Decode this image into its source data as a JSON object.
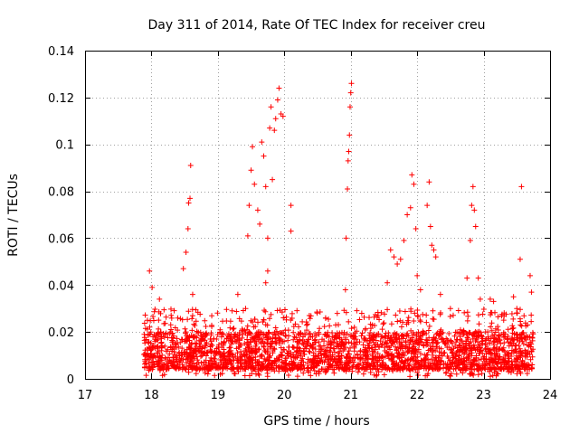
{
  "chart_data": {
    "type": "scatter",
    "title": "Day 311 of 2014, Rate Of TEC Index for receiver creu",
    "xlabel": "GPS time / hours",
    "ylabel": "ROTI / TECUs",
    "xlim": [
      17,
      24
    ],
    "ylim": [
      0,
      0.14
    ],
    "x_ticks": [
      "17",
      "18",
      "19",
      "20",
      "21",
      "22",
      "23",
      "24"
    ],
    "y_ticks": [
      "0",
      "0.02",
      "0.04",
      "0.06",
      "0.08",
      "0.1",
      "0.12",
      "0.14"
    ],
    "grid": true,
    "marker": "plus",
    "series_color": "#ff0000",
    "data_coverage_hours": [
      17.88,
      23.75
    ],
    "background_band": {
      "typical": [
        0.004,
        0.02
      ],
      "occasional_max": 0.03
    },
    "notable_points": [
      {
        "x": 17.97,
        "y": 0.046
      },
      {
        "x": 18.01,
        "y": 0.039
      },
      {
        "x": 18.12,
        "y": 0.034
      },
      {
        "x": 18.48,
        "y": 0.047
      },
      {
        "x": 18.52,
        "y": 0.054
      },
      {
        "x": 18.55,
        "y": 0.064
      },
      {
        "x": 18.56,
        "y": 0.075
      },
      {
        "x": 18.58,
        "y": 0.077
      },
      {
        "x": 18.59,
        "y": 0.091
      },
      {
        "x": 18.62,
        "y": 0.036
      },
      {
        "x": 19.3,
        "y": 0.036
      },
      {
        "x": 19.45,
        "y": 0.061
      },
      {
        "x": 19.47,
        "y": 0.074
      },
      {
        "x": 19.5,
        "y": 0.089
      },
      {
        "x": 19.52,
        "y": 0.099
      },
      {
        "x": 19.55,
        "y": 0.083
      },
      {
        "x": 19.6,
        "y": 0.072
      },
      {
        "x": 19.63,
        "y": 0.066
      },
      {
        "x": 19.66,
        "y": 0.101
      },
      {
        "x": 19.69,
        "y": 0.095
      },
      {
        "x": 19.72,
        "y": 0.082
      },
      {
        "x": 19.75,
        "y": 0.06
      },
      {
        "x": 19.78,
        "y": 0.107
      },
      {
        "x": 19.8,
        "y": 0.116
      },
      {
        "x": 19.82,
        "y": 0.085
      },
      {
        "x": 19.85,
        "y": 0.106
      },
      {
        "x": 19.87,
        "y": 0.111
      },
      {
        "x": 19.9,
        "y": 0.119
      },
      {
        "x": 19.92,
        "y": 0.124
      },
      {
        "x": 19.95,
        "y": 0.113
      },
      {
        "x": 19.98,
        "y": 0.112
      },
      {
        "x": 19.75,
        "y": 0.046
      },
      {
        "x": 19.72,
        "y": 0.041
      },
      {
        "x": 20.1,
        "y": 0.074
      },
      {
        "x": 20.1,
        "y": 0.063
      },
      {
        "x": 20.92,
        "y": 0.038
      },
      {
        "x": 20.93,
        "y": 0.06
      },
      {
        "x": 20.95,
        "y": 0.081
      },
      {
        "x": 20.96,
        "y": 0.093
      },
      {
        "x": 20.97,
        "y": 0.097
      },
      {
        "x": 20.98,
        "y": 0.104
      },
      {
        "x": 20.99,
        "y": 0.116
      },
      {
        "x": 21.0,
        "y": 0.122
      },
      {
        "x": 21.01,
        "y": 0.126
      },
      {
        "x": 21.55,
        "y": 0.041
      },
      {
        "x": 21.6,
        "y": 0.055
      },
      {
        "x": 21.65,
        "y": 0.052
      },
      {
        "x": 21.7,
        "y": 0.049
      },
      {
        "x": 21.75,
        "y": 0.051
      },
      {
        "x": 21.8,
        "y": 0.059
      },
      {
        "x": 21.85,
        "y": 0.07
      },
      {
        "x": 21.9,
        "y": 0.073
      },
      {
        "x": 21.92,
        "y": 0.087
      },
      {
        "x": 21.95,
        "y": 0.083
      },
      {
        "x": 21.98,
        "y": 0.064
      },
      {
        "x": 22.0,
        "y": 0.044
      },
      {
        "x": 22.05,
        "y": 0.038
      },
      {
        "x": 22.15,
        "y": 0.074
      },
      {
        "x": 22.18,
        "y": 0.084
      },
      {
        "x": 22.2,
        "y": 0.065
      },
      {
        "x": 22.22,
        "y": 0.057
      },
      {
        "x": 22.25,
        "y": 0.055
      },
      {
        "x": 22.28,
        "y": 0.052
      },
      {
        "x": 22.35,
        "y": 0.036
      },
      {
        "x": 22.5,
        "y": 0.03
      },
      {
        "x": 22.75,
        "y": 0.043
      },
      {
        "x": 22.8,
        "y": 0.059
      },
      {
        "x": 22.82,
        "y": 0.074
      },
      {
        "x": 22.84,
        "y": 0.082
      },
      {
        "x": 22.86,
        "y": 0.072
      },
      {
        "x": 22.88,
        "y": 0.065
      },
      {
        "x": 22.92,
        "y": 0.043
      },
      {
        "x": 22.95,
        "y": 0.034
      },
      {
        "x": 23.1,
        "y": 0.034
      },
      {
        "x": 23.15,
        "y": 0.033
      },
      {
        "x": 23.45,
        "y": 0.035
      },
      {
        "x": 23.5,
        "y": 0.03
      },
      {
        "x": 23.55,
        "y": 0.051
      },
      {
        "x": 23.57,
        "y": 0.082
      },
      {
        "x": 23.7,
        "y": 0.044
      },
      {
        "x": 23.72,
        "y": 0.037
      }
    ]
  }
}
